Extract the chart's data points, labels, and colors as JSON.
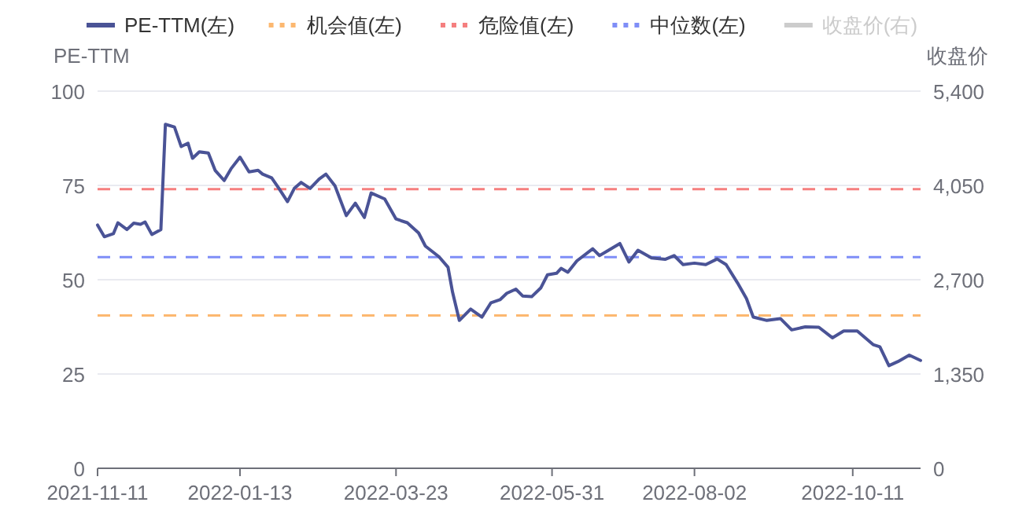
{
  "chart_data": {
    "type": "line",
    "ylabel": "PE-TTM",
    "y2label": "收盘价",
    "legend": "top",
    "grid": "y",
    "marker": "none",
    "line_style": "solid",
    "xlim": [
      "2021-11-11",
      "2022-11-10"
    ],
    "xticks": [
      "2021-11-11",
      "2022-01-13",
      "2022-03-23",
      "2022-05-31",
      "2022-08-02",
      "2022-10-11"
    ],
    "ylim": [
      0,
      100
    ],
    "yticks": [
      0,
      25,
      50,
      75,
      100
    ],
    "y2lim": [
      0,
      5400
    ],
    "y2ticks": [
      0,
      {
        "value": 1350,
        "label": "1,350"
      },
      {
        "value": 2700,
        "label": "2,700"
      },
      {
        "value": 4050,
        "label": "4,050"
      },
      {
        "value": 5400,
        "label": "5,400"
      }
    ],
    "ref_lines": [
      {
        "axis": "y",
        "value": 40.5,
        "label": "机会值(左)",
        "color": "#fcb870",
        "line_style": "dashed"
      },
      {
        "axis": "y",
        "value": 74,
        "label": "危险值(左)",
        "color": "#f57f7f",
        "line_style": "dashed"
      },
      {
        "axis": "y",
        "value": 56,
        "label": "中位数(左)",
        "color": "#7f8ef7",
        "line_style": "dashed"
      }
    ],
    "series": [
      {
        "name": "PE-TTM(左)",
        "color": "#4a5396",
        "x": [
          "2021-11-11",
          "2021-11-14",
          "2021-11-18",
          "2021-11-20",
          "2021-11-24",
          "2021-11-27",
          "2021-11-30",
          "2021-12-02",
          "2021-12-05",
          "2021-12-09",
          "2021-12-11",
          "2021-12-15",
          "2021-12-18",
          "2021-12-21",
          "2021-12-23",
          "2021-12-26",
          "2021-12-30",
          "2022-01-02",
          "2022-01-06",
          "2022-01-09",
          "2022-01-13",
          "2022-01-17",
          "2022-01-21",
          "2022-01-23",
          "2022-01-27",
          "2022-01-30",
          "2022-02-03",
          "2022-02-06",
          "2022-02-09",
          "2022-02-13",
          "2022-02-17",
          "2022-02-20",
          "2022-02-24",
          "2022-03-01",
          "2022-03-05",
          "2022-03-09",
          "2022-03-12",
          "2022-03-18",
          "2022-03-23",
          "2022-03-28",
          "2022-04-02",
          "2022-04-05",
          "2022-04-11",
          "2022-04-15",
          "2022-04-17",
          "2022-04-20",
          "2022-04-25",
          "2022-04-30",
          "2022-05-04",
          "2022-05-08",
          "2022-05-11",
          "2022-05-15",
          "2022-05-18",
          "2022-05-22",
          "2022-05-26",
          "2022-05-29",
          "2022-06-02",
          "2022-06-04",
          "2022-06-07",
          "2022-06-11",
          "2022-06-18",
          "2022-06-21",
          "2022-06-25",
          "2022-06-30",
          "2022-07-04",
          "2022-07-08",
          "2022-07-14",
          "2022-07-20",
          "2022-07-24",
          "2022-07-28",
          "2022-08-02",
          "2022-08-07",
          "2022-08-12",
          "2022-08-16",
          "2022-08-21",
          "2022-08-25",
          "2022-08-28",
          "2022-09-03",
          "2022-09-09",
          "2022-09-14",
          "2022-09-20",
          "2022-09-26",
          "2022-10-02",
          "2022-10-07",
          "2022-10-13",
          "2022-10-20",
          "2022-10-23",
          "2022-10-27",
          "2022-10-31",
          "2022-11-05",
          "2022-11-10"
        ],
        "values": [
          64.5,
          61.4,
          62.2,
          65.1,
          63.3,
          65,
          64.7,
          65.3,
          62,
          63.3,
          91.2,
          90.5,
          85.3,
          86.2,
          82.2,
          83.9,
          83.6,
          79,
          76.3,
          79.4,
          82.5,
          78.6,
          79,
          78,
          77,
          74.4,
          70.7,
          74.2,
          75.8,
          74.2,
          76.7,
          78,
          74.9,
          67,
          70.3,
          66.5,
          73,
          71.4,
          66.1,
          65.1,
          62.4,
          58.9,
          56.1,
          53.3,
          46.7,
          39.2,
          42.2,
          40.1,
          43.9,
          44.7,
          46.4,
          47.5,
          45.7,
          45.5,
          47.8,
          51.3,
          51.7,
          53,
          52,
          55,
          58.2,
          56.4,
          57.8,
          59.6,
          54.7,
          57.8,
          55.8,
          55.4,
          56.4,
          54,
          54.4,
          54,
          55.5,
          54,
          49.2,
          45,
          40.1,
          39.2,
          39.7,
          36.7,
          37.5,
          37.4,
          34.6,
          36.4,
          36.4,
          32.8,
          32.2,
          27.2,
          28.3,
          30,
          28.6
        ]
      },
      {
        "name": "收盘价(右)",
        "color": "#cccccc"
      }
    ]
  }
}
